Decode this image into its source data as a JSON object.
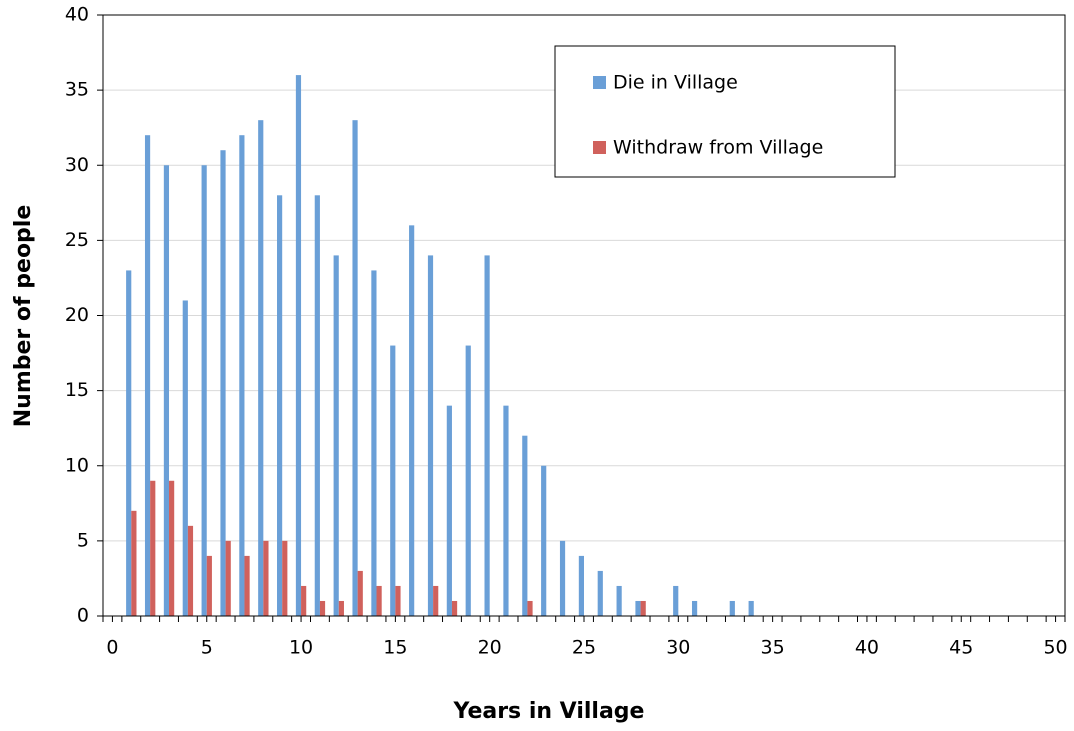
{
  "chart_data": {
    "type": "bar",
    "xlabel": "Years in Village",
    "ylabel": "Number of people",
    "x": [
      1,
      2,
      3,
      4,
      5,
      6,
      7,
      8,
      9,
      10,
      11,
      12,
      13,
      14,
      15,
      16,
      17,
      18,
      19,
      20,
      21,
      22,
      23,
      24,
      25,
      26,
      27,
      28,
      29,
      30,
      31,
      32,
      33,
      34
    ],
    "series": [
      {
        "name": "Die in Village",
        "color": "#6a9fd7",
        "values": [
          23,
          32,
          30,
          21,
          30,
          31,
          32,
          33,
          28,
          36,
          28,
          24,
          33,
          23,
          18,
          26,
          24,
          14,
          18,
          24,
          14,
          12,
          10,
          5,
          4,
          3,
          2,
          1,
          0,
          2,
          1,
          0,
          1,
          1
        ]
      },
      {
        "name": "Withdraw from Village",
        "color": "#d0615c",
        "values": [
          7,
          9,
          9,
          6,
          4,
          5,
          4,
          5,
          5,
          2,
          1,
          1,
          3,
          2,
          2,
          0,
          2,
          1,
          0,
          0,
          0,
          1,
          0,
          0,
          0,
          0,
          0,
          1,
          0,
          0,
          0,
          0,
          0,
          0
        ]
      }
    ],
    "xlim": [
      -0.5,
      50.5
    ],
    "xticks": [
      0,
      5,
      10,
      15,
      20,
      25,
      30,
      35,
      40,
      45,
      50
    ],
    "ylim": [
      0,
      40
    ],
    "yticks": [
      0,
      5,
      10,
      15,
      20,
      25,
      30,
      35,
      40
    ],
    "grid": true,
    "legend": "top-right"
  }
}
